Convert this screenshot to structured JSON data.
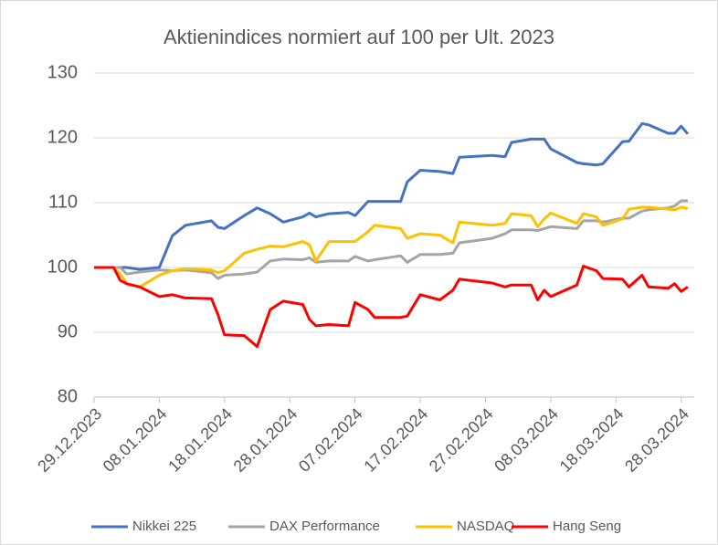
{
  "chart_data": {
    "type": "line",
    "title": "Aktienindices normiert auf 100 per Ult. 2023",
    "x": [
      "2023-12-29",
      "2024-01-01",
      "2024-01-02",
      "2024-01-03",
      "2024-01-05",
      "2024-01-08",
      "2024-01-10",
      "2024-01-12",
      "2024-01-16",
      "2024-01-17",
      "2024-01-18",
      "2024-01-21",
      "2024-01-23",
      "2024-01-25",
      "2024-01-27",
      "2024-01-30",
      "2024-01-31",
      "2024-02-01",
      "2024-02-03",
      "2024-02-06",
      "2024-02-07",
      "2024-02-09",
      "2024-02-10",
      "2024-02-14",
      "2024-02-15",
      "2024-02-17",
      "2024-02-20",
      "2024-02-22",
      "2024-02-23",
      "2024-02-28",
      "2024-03-01",
      "2024-03-02",
      "2024-03-05",
      "2024-03-06",
      "2024-03-07",
      "2024-03-08",
      "2024-03-12",
      "2024-03-13",
      "2024-03-15",
      "2024-03-16",
      "2024-03-19",
      "2024-03-20",
      "2024-03-22",
      "2024-03-23",
      "2024-03-26",
      "2024-03-27",
      "2024-03-28",
      "2024-03-29"
    ],
    "series": [
      {
        "name": "Nikkei 225",
        "color": "#4472c4",
        "values": [
          100,
          100,
          100,
          100,
          99.7,
          100,
          104.9,
          106.5,
          107.2,
          106.2,
          106,
          108,
          109.2,
          108.3,
          107,
          107.8,
          108.4,
          107.8,
          108.3,
          108.5,
          108,
          110.2,
          110.2,
          110.2,
          113.2,
          115,
          114.8,
          114.5,
          117,
          117.3,
          117.1,
          119.3,
          119.8,
          119.8,
          119.8,
          118.3,
          116.2,
          116,
          115.8,
          116,
          119.4,
          119.5,
          122.2,
          122,
          120.7,
          120.7,
          121.8,
          120.6
        ]
      },
      {
        "name": "DAX Performance",
        "color": "#a5a5a5",
        "values": [
          100,
          100,
          100,
          99,
          99.3,
          99.6,
          99.5,
          99.6,
          99.2,
          98.3,
          98.8,
          99,
          99.3,
          101,
          101.3,
          101.2,
          101.5,
          100.8,
          101,
          101,
          101.7,
          101,
          101.2,
          101.8,
          100.8,
          102,
          102,
          102.2,
          103.8,
          104.5,
          105.2,
          105.8,
          105.8,
          105.7,
          106,
          106.3,
          106,
          107.2,
          107.2,
          107,
          107.6,
          107.6,
          108.7,
          108.9,
          109.2,
          109.5,
          110.3,
          110.3
        ]
      },
      {
        "name": "NASDAQ",
        "color": "#ffc000",
        "values": [
          100,
          100,
          99,
          97.5,
          97,
          98.8,
          99.5,
          99.8,
          99.6,
          99.2,
          99.5,
          102.2,
          102.8,
          103.3,
          103.2,
          104,
          103.5,
          101,
          104,
          104,
          104,
          105.5,
          106.5,
          106,
          104.5,
          105.2,
          105,
          103.8,
          107,
          106.5,
          106.8,
          108.3,
          108,
          106.3,
          107.5,
          108.4,
          106.8,
          108.3,
          107.8,
          106.5,
          107.5,
          109,
          109.3,
          109.3,
          109,
          108.9,
          109.3,
          109.1
        ]
      },
      {
        "name": "Hang Seng",
        "color": "#ff0000",
        "values": [
          100,
          100,
          98,
          97.5,
          97,
          95.5,
          95.8,
          95.3,
          95.2,
          92.7,
          89.6,
          89.5,
          87.8,
          93.5,
          94.8,
          94.3,
          92,
          91,
          91.2,
          91,
          94.6,
          93.5,
          92.3,
          92.3,
          92.5,
          95.8,
          95,
          96.5,
          98.2,
          97.6,
          97,
          97.3,
          97.3,
          95,
          96.5,
          95.5,
          97.3,
          100.2,
          99.5,
          98.3,
          98.2,
          97,
          98.8,
          97,
          96.8,
          97.5,
          96.3,
          97
        ]
      }
    ],
    "xlim": [
      "2023-12-29",
      "2024-03-30"
    ],
    "xticks": [
      {
        "value": "2023-12-29",
        "label": "29.12.2023"
      },
      {
        "value": "2024-01-08",
        "label": "08.01.2024"
      },
      {
        "value": "2024-01-18",
        "label": "18.01.2024"
      },
      {
        "value": "2024-01-28",
        "label": "28.01.2024"
      },
      {
        "value": "2024-02-07",
        "label": "07.02.2024"
      },
      {
        "value": "2024-02-17",
        "label": "17.02.2024"
      },
      {
        "value": "2024-02-27",
        "label": "27.02.2024"
      },
      {
        "value": "2024-03-08",
        "label": "08.03.2024"
      },
      {
        "value": "2024-03-18",
        "label": "18.03.2024"
      },
      {
        "value": "2024-03-28",
        "label": "28.03.2024"
      }
    ],
    "ylim": [
      80,
      130
    ],
    "yticks": [
      80,
      90,
      100,
      110,
      120,
      130
    ],
    "grid": true,
    "legend": "bottom"
  }
}
